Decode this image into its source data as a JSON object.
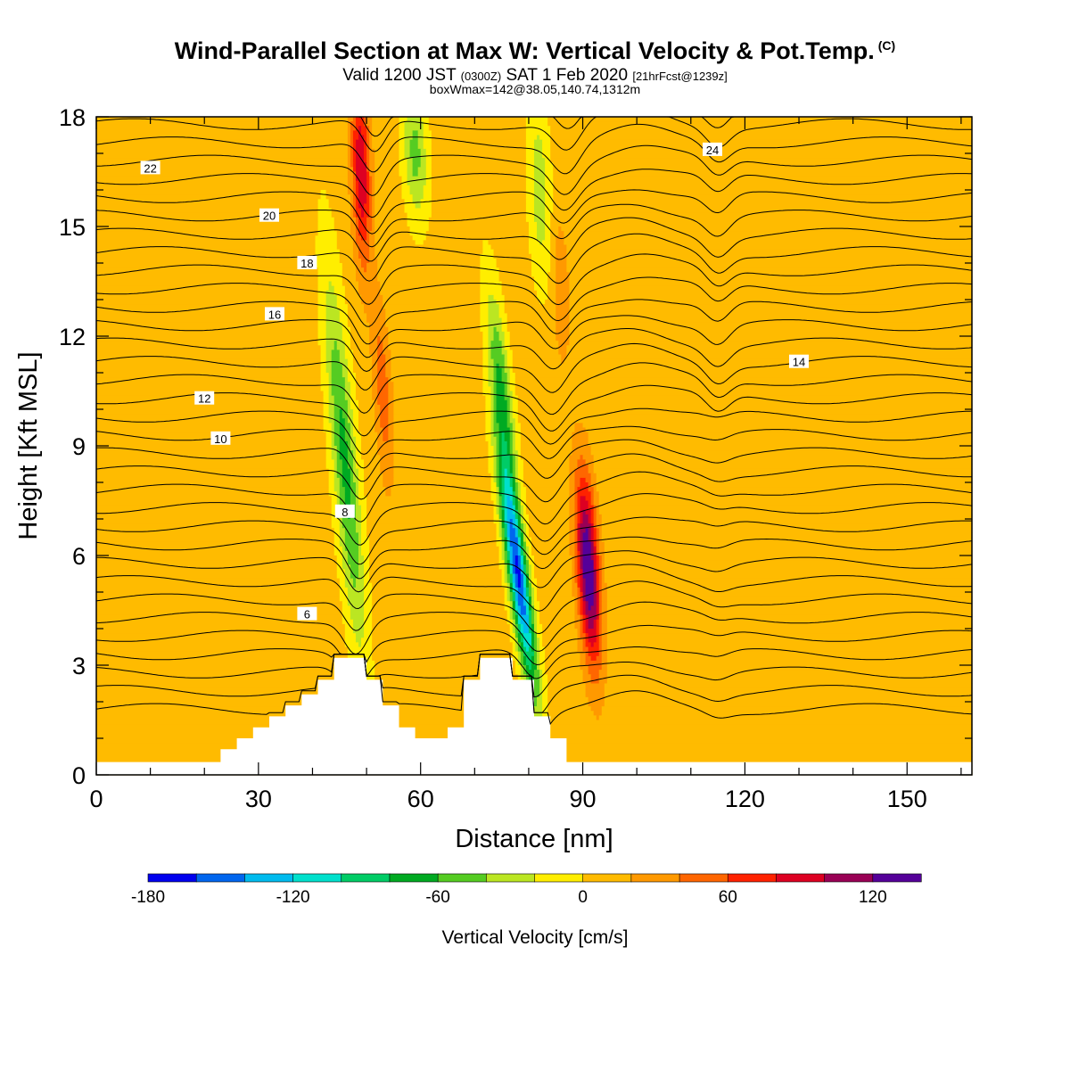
{
  "title": {
    "main": "Wind-Parallel Section at Max W: Vertical Velocity & Pot.Temp.",
    "copyright": "(C)",
    "valid_prefix": "Valid 1200 JST",
    "valid_utc": "(0300Z)",
    "valid_date": "SAT 1 Feb 2020",
    "forecast": "[21hrFcst@1239z]",
    "boxinfo": "boxWmax=142@38.05,140.74,1312m"
  },
  "chart_data": {
    "type": "heatmap",
    "xlabel": "Distance [nm]",
    "ylabel": "Height [Kft MSL]",
    "xlim": [
      0,
      162
    ],
    "ylim": [
      0,
      18
    ],
    "xticks": [
      "0",
      "30",
      "60",
      "90",
      "120",
      "150"
    ],
    "yticks": [
      "0",
      "3",
      "6",
      "9",
      "12",
      "15",
      "18"
    ],
    "colorbar": {
      "label": "Vertical Velocity [cm/s]",
      "levels": [
        -180,
        -160,
        -140,
        -120,
        -100,
        -80,
        -60,
        -40,
        -20,
        0,
        20,
        40,
        60,
        80,
        100,
        120,
        140
      ],
      "colors": [
        "#0000ee",
        "#0066ee",
        "#00bbee",
        "#00e0cc",
        "#00cc66",
        "#00aa22",
        "#55cc22",
        "#bbe622",
        "#ffee00",
        "#ffbb00",
        "#ff9900",
        "#ff6600",
        "#ff2200",
        "#dd0022",
        "#990055",
        "#550099"
      ],
      "ticklabels": [
        "-180",
        "-120",
        "-60",
        "0",
        "60",
        "120"
      ]
    },
    "terrain_steps": [
      {
        "x0": 23,
        "x1": 26,
        "h": 0.7
      },
      {
        "x0": 26,
        "x1": 29,
        "h": 1.0
      },
      {
        "x0": 29,
        "x1": 32,
        "h": 1.3
      },
      {
        "x0": 32,
        "x1": 35,
        "h": 1.6
      },
      {
        "x0": 35,
        "x1": 38,
        "h": 1.9
      },
      {
        "x0": 38,
        "x1": 41,
        "h": 2.2
      },
      {
        "x0": 41,
        "x1": 44,
        "h": 2.6
      },
      {
        "x0": 44,
        "x1": 50,
        "h": 3.2
      },
      {
        "x0": 50,
        "x1": 53,
        "h": 2.6
      },
      {
        "x0": 53,
        "x1": 56,
        "h": 1.9
      },
      {
        "x0": 56,
        "x1": 59,
        "h": 1.3
      },
      {
        "x0": 59,
        "x1": 65,
        "h": 1.0
      },
      {
        "x0": 65,
        "x1": 68,
        "h": 1.3
      },
      {
        "x0": 68,
        "x1": 71,
        "h": 2.6
      },
      {
        "x0": 71,
        "x1": 77,
        "h": 3.2
      },
      {
        "x0": 77,
        "x1": 81,
        "h": 2.6
      },
      {
        "x0": 81,
        "x1": 84,
        "h": 1.6
      },
      {
        "x0": 84,
        "x1": 87,
        "h": 1.0
      }
    ],
    "w_features": [
      {
        "x": 46,
        "y": 8.5,
        "sx": 2.2,
        "sy": 5.0,
        "tilt": -0.55,
        "w": -75
      },
      {
        "x": 49,
        "y": 16.5,
        "sx": 1.7,
        "sy": 2.6,
        "tilt": -0.2,
        "w": 90
      },
      {
        "x": 53,
        "y": 10.5,
        "sx": 1.6,
        "sy": 2.5,
        "tilt": -0.4,
        "w": 45
      },
      {
        "x": 59,
        "y": 17,
        "sx": 2.2,
        "sy": 1.8,
        "tilt": -0.3,
        "w": -55
      },
      {
        "x": 78,
        "y": 5.5,
        "sx": 1.8,
        "sy": 3.2,
        "tilt": -0.9,
        "w": -170
      },
      {
        "x": 75,
        "y": 10.5,
        "sx": 1.8,
        "sy": 2.8,
        "tilt": -0.7,
        "w": -70
      },
      {
        "x": 91,
        "y": 5.6,
        "sx": 2.0,
        "sy": 2.6,
        "tilt": -0.4,
        "w": 135
      },
      {
        "x": 82,
        "y": 16,
        "sx": 2.0,
        "sy": 2.5,
        "tilt": -0.2,
        "w": -40
      },
      {
        "x": 86,
        "y": 13.2,
        "sx": 1.5,
        "sy": 2.0,
        "tilt": -0.2,
        "w": 30
      }
    ],
    "theta_contours": [
      {
        "label": "6",
        "y0": 4.4,
        "lx": 39,
        "ly": 4.4
      },
      {
        "label": "8",
        "y0": 6.6,
        "lx": 46,
        "ly": 7.2
      },
      {
        "label": "10",
        "y0": 9.2,
        "lx": 23,
        "ly": 9.2
      },
      {
        "label": "12",
        "y0": 10.3,
        "lx": 20,
        "ly": 10.3
      },
      {
        "label": "14",
        "y0": 11.5,
        "lx": 130,
        "ly": 11.3
      },
      {
        "label": "16",
        "y0": 12.6,
        "lx": 33,
        "ly": 12.6
      },
      {
        "label": "18",
        "y0": 14.0,
        "lx": 39,
        "ly": 14.0
      },
      {
        "label": "20",
        "y0": 15.3,
        "lx": 32,
        "ly": 15.3
      },
      {
        "label": "22",
        "y0": 16.6,
        "lx": 10,
        "ly": 16.6
      },
      {
        "label": "24",
        "y0": 17.5,
        "lx": 114,
        "ly": 17.1
      }
    ]
  }
}
